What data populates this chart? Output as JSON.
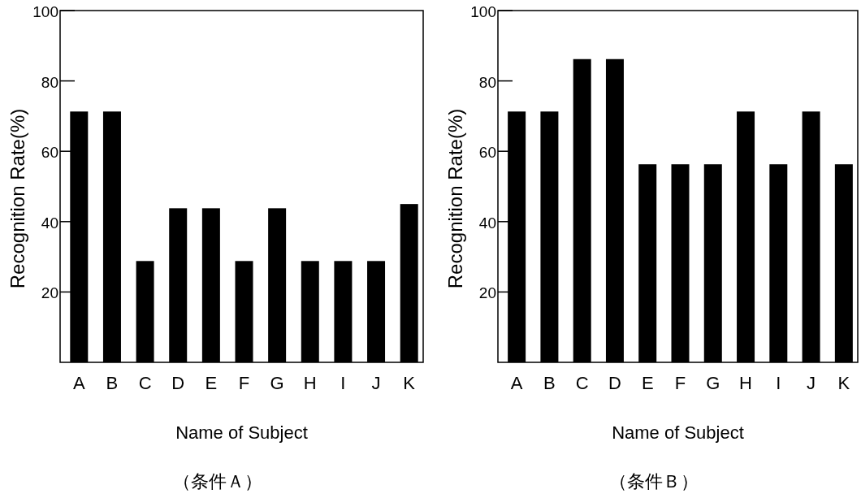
{
  "chart_data": [
    {
      "type": "bar",
      "ylabel": "Recognition Rate(%)",
      "xlabel": "Name of Subject",
      "annotations": [
        "（条件Ａ）"
      ],
      "categories": [
        "A",
        "B",
        "C",
        "D",
        "E",
        "F",
        "G",
        "H",
        "I",
        "J",
        "K"
      ],
      "values": [
        71.3,
        71.3,
        28.8,
        43.8,
        43.8,
        28.8,
        43.8,
        28.8,
        28.8,
        28.8,
        45.0
      ],
      "color": "#000000",
      "ylim": [
        0,
        100
      ],
      "yticks": [
        20,
        40,
        60,
        80,
        100
      ],
      "grid": false
    },
    {
      "type": "bar",
      "ylabel": "Recognition Rate(%)",
      "xlabel": "Name of Subject",
      "annotations": [
        "（条件Ｂ）"
      ],
      "categories": [
        "A",
        "B",
        "C",
        "D",
        "E",
        "F",
        "G",
        "H",
        "I",
        "J",
        "K"
      ],
      "values": [
        71.3,
        71.3,
        86.2,
        86.2,
        56.3,
        56.3,
        56.3,
        71.3,
        56.3,
        71.3,
        56.3
      ],
      "color": "#000000",
      "ylim": [
        0,
        100
      ],
      "yticks": [
        20,
        40,
        60,
        80,
        100
      ],
      "grid": false
    }
  ]
}
